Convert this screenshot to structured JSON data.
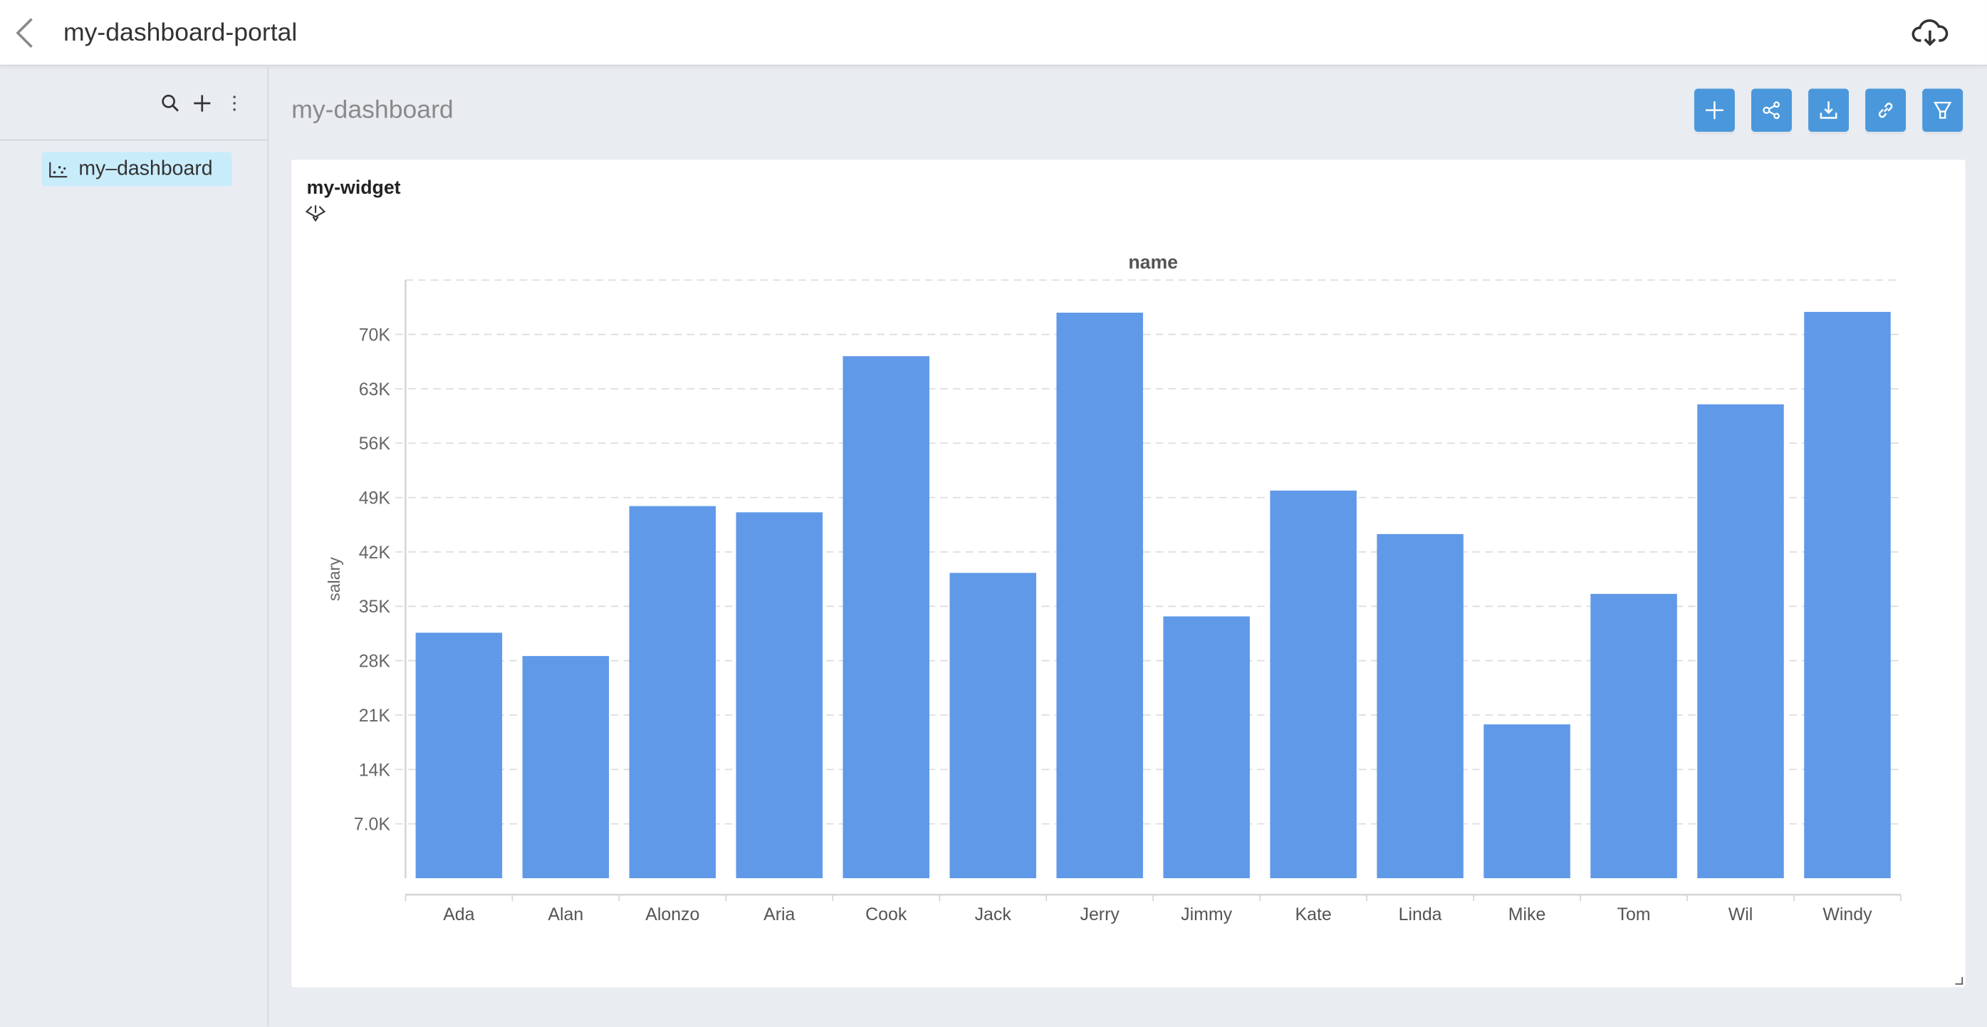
{
  "header": {
    "title": "my-dashboard-portal",
    "back_icon": "chevron-left-icon",
    "download_icon": "cloud-download-icon"
  },
  "sidebar": {
    "tools": [
      "search-icon",
      "plus-icon",
      "more-vertical-icon"
    ],
    "items": [
      {
        "label": "my–dashboard",
        "icon": "scatter-chart-icon",
        "active": true
      }
    ]
  },
  "main": {
    "title": "my-dashboard",
    "toolbar": [
      "plus-icon",
      "share-icon",
      "download-icon",
      "link-icon",
      "filter-icon"
    ],
    "accent": "#4a98db"
  },
  "widget": {
    "title": "my-widget",
    "icon": "drill-icon"
  },
  "chart_data": {
    "type": "bar",
    "title": "name",
    "xlabel": "",
    "ylabel": "salary",
    "categories": [
      "Ada",
      "Alan",
      "Alonzo",
      "Aria",
      "Cook",
      "Jack",
      "Jerry",
      "Jimmy",
      "Kate",
      "Linda",
      "Mike",
      "Tom",
      "Wil",
      "Windy"
    ],
    "values": [
      31600,
      28600,
      47900,
      47100,
      67200,
      39300,
      72800,
      33700,
      49900,
      44300,
      19800,
      36600,
      61000,
      72900
    ],
    "ylim": [
      0,
      77000
    ],
    "yticks": [
      7000,
      14000,
      21000,
      28000,
      35000,
      42000,
      49000,
      56000,
      63000,
      70000
    ],
    "ytick_labels": [
      "7.0K",
      "14K",
      "21K",
      "28K",
      "35K",
      "42K",
      "49K",
      "56K",
      "63K",
      "70K"
    ],
    "grid": true,
    "bar_color": "#6099e8"
  }
}
